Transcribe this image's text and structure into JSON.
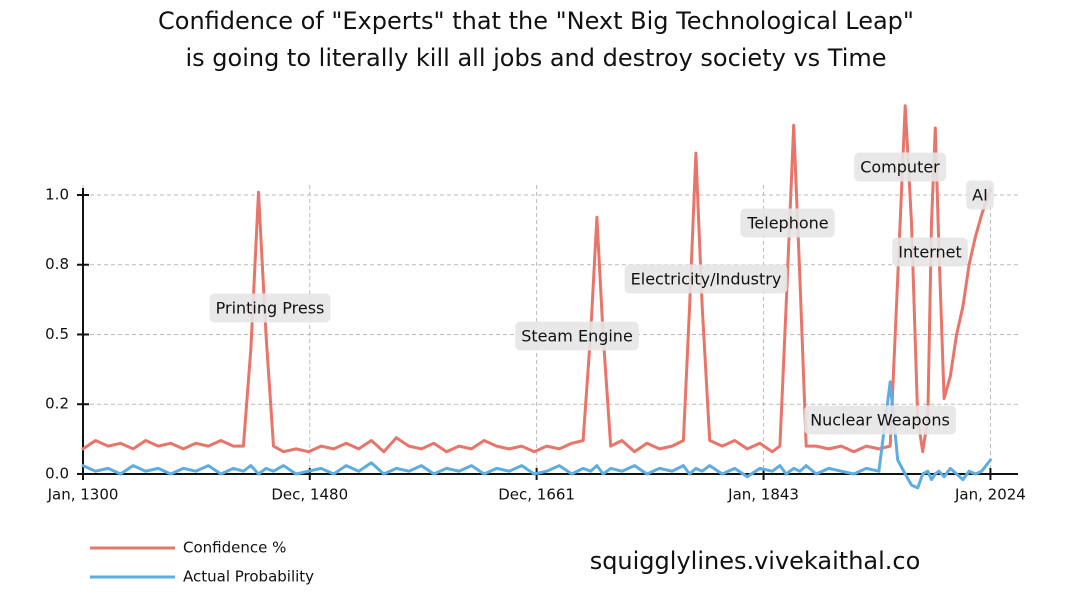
{
  "chart_data": {
    "type": "line",
    "title": [
      "Confidence of \"Experts\" that the \"Next Big Technological Leap\"",
      "is going to literally kill all jobs and destroy society vs Time"
    ],
    "x": [
      1300,
      1310,
      1320,
      1330,
      1340,
      1350,
      1360,
      1370,
      1380,
      1390,
      1400,
      1410,
      1420,
      1428,
      1434,
      1440,
      1446,
      1452,
      1460,
      1470,
      1480,
      1490,
      1500,
      1510,
      1520,
      1530,
      1540,
      1550,
      1560,
      1570,
      1580,
      1590,
      1600,
      1610,
      1620,
      1630,
      1640,
      1650,
      1660,
      1670,
      1680,
      1690,
      1699,
      1705,
      1710,
      1715,
      1721,
      1730,
      1740,
      1750,
      1760,
      1770,
      1779,
      1784,
      1789,
      1794,
      1800,
      1810,
      1820,
      1830,
      1840,
      1850,
      1856,
      1861,
      1867,
      1872,
      1877,
      1885,
      1895,
      1905,
      1915,
      1925,
      1935,
      1944,
      1950,
      1956,
      1961,
      1966,
      1970,
      1974,
      1977,
      1980,
      1983,
      1987,
      1992,
      1997,
      2002,
      2007,
      2012,
      2017,
      2024
    ],
    "series": [
      {
        "name": "Confidence %",
        "color": "#e8756a",
        "values": [
          0.09,
          0.12,
          0.1,
          0.11,
          0.09,
          0.12,
          0.1,
          0.11,
          0.09,
          0.11,
          0.1,
          0.12,
          0.1,
          0.1,
          0.45,
          1.01,
          0.5,
          0.1,
          0.08,
          0.09,
          0.08,
          0.1,
          0.09,
          0.11,
          0.09,
          0.12,
          0.08,
          0.13,
          0.1,
          0.09,
          0.11,
          0.08,
          0.1,
          0.09,
          0.12,
          0.1,
          0.09,
          0.1,
          0.08,
          0.1,
          0.09,
          0.11,
          0.12,
          0.5,
          0.92,
          0.5,
          0.1,
          0.12,
          0.08,
          0.11,
          0.09,
          0.1,
          0.12,
          0.6,
          1.15,
          0.6,
          0.12,
          0.1,
          0.12,
          0.09,
          0.11,
          0.08,
          0.1,
          0.6,
          1.25,
          0.7,
          0.1,
          0.1,
          0.09,
          0.1,
          0.08,
          0.1,
          0.09,
          0.1,
          0.7,
          1.32,
          0.9,
          0.2,
          0.08,
          0.2,
          0.9,
          1.24,
          0.8,
          0.27,
          0.35,
          0.5,
          0.6,
          0.75,
          0.85,
          0.93,
          1.02
        ]
      },
      {
        "name": "Actual Probability",
        "color": "#5dade2",
        "values": [
          0.03,
          0.01,
          0.02,
          0.0,
          0.03,
          0.01,
          0.02,
          0.0,
          0.02,
          0.01,
          0.03,
          0.0,
          0.02,
          0.01,
          0.03,
          0.0,
          0.02,
          0.01,
          0.03,
          0.0,
          0.01,
          0.02,
          0.0,
          0.03,
          0.01,
          0.04,
          0.0,
          0.02,
          0.01,
          0.03,
          0.0,
          0.02,
          0.01,
          0.03,
          0.0,
          0.02,
          0.01,
          0.03,
          0.0,
          0.01,
          0.03,
          0.0,
          0.02,
          0.01,
          0.03,
          0.0,
          0.02,
          0.01,
          0.03,
          0.0,
          0.02,
          0.01,
          0.03,
          0.0,
          0.02,
          0.01,
          0.03,
          0.0,
          0.02,
          -0.01,
          0.02,
          0.01,
          0.03,
          0.0,
          0.02,
          0.01,
          0.03,
          0.0,
          0.02,
          0.01,
          0.0,
          0.02,
          0.01,
          0.33,
          0.05,
          0.0,
          -0.04,
          -0.05,
          0.0,
          0.01,
          -0.02,
          0.0,
          0.01,
          -0.01,
          0.02,
          0.0,
          -0.02,
          0.01,
          0.0,
          0.01,
          0.05
        ]
      }
    ],
    "xlim": [
      1300,
      2046
    ],
    "xticks": [
      {
        "value": 1300,
        "label": "Jan, 1300"
      },
      {
        "value": 1480.92,
        "label": "Dec, 1480"
      },
      {
        "value": 1661.92,
        "label": "Dec, 1661"
      },
      {
        "value": 1843,
        "label": "Jan, 1843"
      },
      {
        "value": 2024,
        "label": "Jan, 2024"
      }
    ],
    "ylim": [
      -0.07,
      1.35
    ],
    "yticks": [
      {
        "value": 0,
        "label": "0.0"
      },
      {
        "value": 0.25,
        "label": "0.2"
      },
      {
        "value": 0.5,
        "label": "0.5"
      },
      {
        "value": 0.75,
        "label": "0.8"
      },
      {
        "value": 1,
        "label": "1.0"
      }
    ],
    "grid": true,
    "legend": "lower-left",
    "annotations": [
      "Printing Press",
      "Steam Engine",
      "Electricity/Industry",
      "Telephone",
      "Computer",
      "AI",
      "Internet",
      "Nuclear Weapons"
    ],
    "footer": "squigglylines.vivekaithal.co"
  }
}
